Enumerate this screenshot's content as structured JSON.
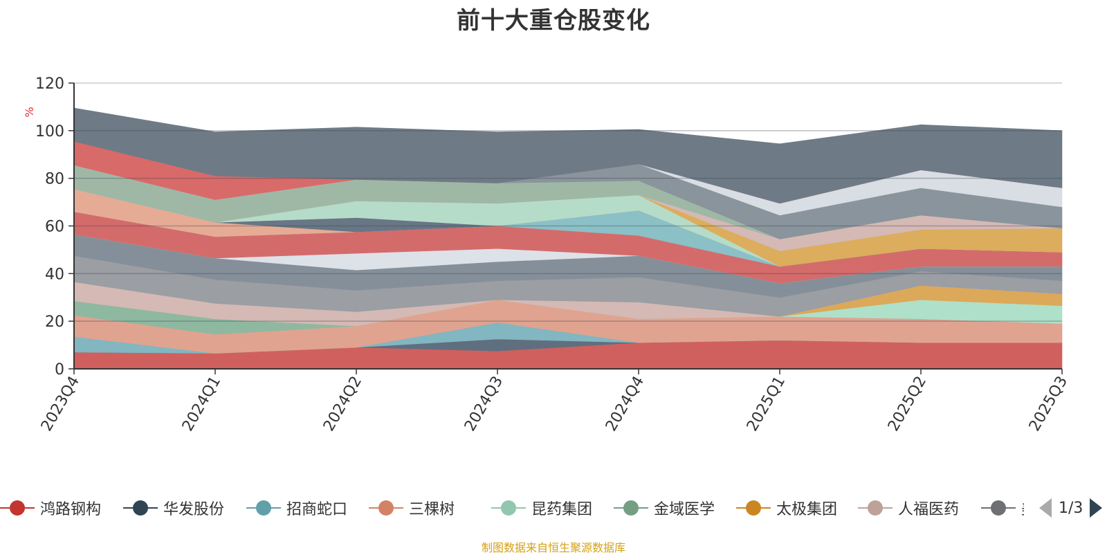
{
  "chart_data": {
    "type": "area",
    "stacked": true,
    "title": "前十大重仓股变化",
    "ylabel": "%",
    "ylim": [
      0,
      120
    ],
    "yticks": [
      0,
      20,
      40,
      60,
      80,
      100,
      120
    ],
    "categories": [
      "2023Q4",
      "2024Q1",
      "2024Q2",
      "2024Q3",
      "2024Q4",
      "2025Q1",
      "2025Q2",
      "2025Q3"
    ],
    "grid": true,
    "legend_position": "bottom",
    "layers": [
      {
        "color": "#d0605e",
        "values": [
          7,
          6.5,
          9,
          7.5,
          11,
          12,
          11,
          11
        ]
      },
      {
        "color": "#5f6f7f",
        "values": [
          0,
          0,
          0,
          5,
          0,
          0,
          0,
          0
        ]
      },
      {
        "color": "#82b6c0",
        "values": [
          6.5,
          0,
          0,
          7,
          0,
          0,
          0,
          0
        ]
      },
      {
        "color": "#e0a38f",
        "values": [
          9,
          8,
          9,
          9.5,
          10,
          10,
          10,
          8
        ]
      },
      {
        "color": "#8fb8a0",
        "values": [
          6,
          6.5,
          0,
          0,
          0,
          0,
          0,
          0
        ]
      },
      {
        "color": "#afe0c9",
        "values": [
          0,
          0,
          0,
          0,
          0,
          0,
          8,
          7.5
        ]
      },
      {
        "color": "#dca85a",
        "values": [
          0,
          0,
          0,
          0,
          0,
          0,
          6,
          5
        ]
      },
      {
        "color": "#d4b9b5",
        "values": [
          8,
          6.5,
          6,
          0,
          7,
          0,
          0,
          0
        ]
      },
      {
        "color": "#9b9ea3",
        "values": [
          11,
          10,
          9,
          8,
          10.5,
          8,
          6,
          5.5
        ]
      },
      {
        "color": "#858f99",
        "values": [
          9,
          9,
          8.5,
          8,
          9,
          6,
          2,
          6
        ]
      },
      {
        "color": "#dde1e8",
        "values": [
          0,
          0,
          7,
          5.5,
          0,
          0,
          0,
          0
        ]
      },
      {
        "color": "#d46b6b",
        "values": [
          9.5,
          9,
          9,
          9.5,
          8.5,
          7,
          7.5,
          6
        ]
      },
      {
        "color": "#8bc0c7",
        "values": [
          0,
          0,
          0,
          0,
          10.5,
          0,
          0,
          0
        ]
      },
      {
        "color": "#e6ab95",
        "values": [
          9.5,
          6,
          0,
          0,
          0,
          0,
          0,
          0
        ]
      },
      {
        "color": "#687685",
        "values": [
          0,
          0,
          6,
          0,
          0,
          0,
          0,
          0
        ]
      },
      {
        "color": "#b5dcc8",
        "values": [
          0,
          0,
          7,
          9.5,
          6.5,
          0,
          0,
          0
        ]
      },
      {
        "color": "#dcad5c",
        "values": [
          0,
          0,
          0,
          0,
          0,
          6.5,
          8,
          10
        ]
      },
      {
        "color": "#d4b9b5",
        "values": [
          0,
          0,
          0,
          0,
          0,
          5,
          6,
          0
        ]
      },
      {
        "color": "#9fb8a6",
        "values": [
          10,
          9.5,
          9,
          8.5,
          6,
          0,
          0,
          0
        ]
      },
      {
        "color": "#8a949c",
        "values": [
          0,
          0,
          0,
          0,
          7,
          10,
          11.5,
          9
        ]
      },
      {
        "color": "#d9dde4",
        "values": [
          0,
          0,
          0,
          0,
          0,
          5,
          7.5,
          8
        ]
      },
      {
        "color": "#d86a69",
        "values": [
          10,
          10,
          0,
          0,
          0,
          0,
          0,
          0
        ]
      },
      {
        "color": "#6e7b86",
        "values": [
          14,
          18.5,
          22,
          21.5,
          14.5,
          25,
          19,
          24
        ]
      }
    ],
    "series": [
      {
        "name": "鸿路钢构",
        "color": "#c23531"
      },
      {
        "name": "华发股份",
        "color": "#2f4554"
      },
      {
        "name": "招商蛇口",
        "color": "#61a0a8"
      },
      {
        "name": "三棵树",
        "color": "#d48265"
      },
      {
        "name": "昆药集团",
        "color": "#91c7ae"
      },
      {
        "name": "金域医学",
        "color": "#749f83"
      },
      {
        "name": "太极集团",
        "color": "#ca8622"
      },
      {
        "name": "人福医药",
        "color": "#bda29a"
      },
      {
        "name": "美华",
        "color": "#6e7074"
      }
    ]
  },
  "legend_page": "1/3",
  "footer_note": "制图数据来自恒生聚源数据库"
}
